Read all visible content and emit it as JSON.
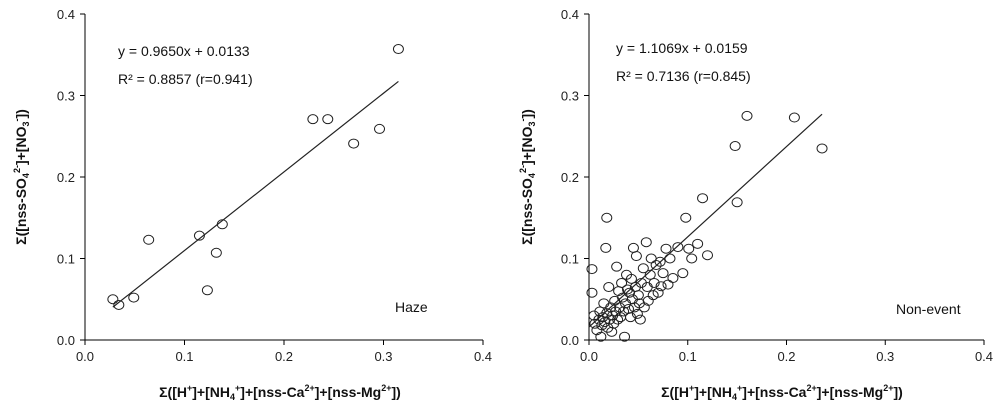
{
  "chart_data": [
    {
      "type": "scatter",
      "title": "",
      "annotation": "Haze",
      "equation": "y = 0.9650x + 0.0133",
      "r2_text": "R² = 0.8857 (r=0.941)",
      "fit": {
        "slope": 0.965,
        "intercept": 0.0133,
        "x_range": [
          0.028,
          0.315
        ]
      },
      "xlim": [
        0,
        0.4
      ],
      "ylim": [
        0,
        0.4
      ],
      "xticks": [
        "0.0",
        "0.1",
        "0.2",
        "0.3",
        "0.4"
      ],
      "yticks": [
        "0.0",
        "0.1",
        "0.2",
        "0.3",
        "0.4"
      ],
      "xlabel": {
        "pre": "Σ([H",
        "s1": "+",
        "m1": "]+[NH",
        "s2": "4",
        "s3": "+",
        "m2": "]+[nss-Ca",
        "s4": "2+",
        "m3": "]+[nss-Mg",
        "s5": "2+",
        "post": "])"
      },
      "ylabel": {
        "pre": "Σ([nss-SO",
        "s1": "4",
        "s2": "2-",
        "m1": "]+[NO",
        "s3": "3",
        "s4": "-",
        "post": "])"
      },
      "points": [
        {
          "x": 0.028,
          "y": 0.05
        },
        {
          "x": 0.034,
          "y": 0.043
        },
        {
          "x": 0.049,
          "y": 0.052
        },
        {
          "x": 0.064,
          "y": 0.123
        },
        {
          "x": 0.115,
          "y": 0.128
        },
        {
          "x": 0.123,
          "y": 0.061
        },
        {
          "x": 0.132,
          "y": 0.107
        },
        {
          "x": 0.138,
          "y": 0.142
        },
        {
          "x": 0.229,
          "y": 0.271
        },
        {
          "x": 0.244,
          "y": 0.271
        },
        {
          "x": 0.27,
          "y": 0.241
        },
        {
          "x": 0.296,
          "y": 0.259
        },
        {
          "x": 0.315,
          "y": 0.357
        }
      ]
    },
    {
      "type": "scatter",
      "title": "",
      "annotation": "Non-event",
      "equation": "y = 1.1069x + 0.0159",
      "r2_text": "R² = 0.7136 (r=0.845)",
      "fit": {
        "slope": 1.1069,
        "intercept": 0.0159,
        "x_range": [
          0.0,
          0.236
        ]
      },
      "xlim": [
        0,
        0.4
      ],
      "ylim": [
        0,
        0.4
      ],
      "xticks": [
        "0.0",
        "0.1",
        "0.2",
        "0.3",
        "0.4"
      ],
      "yticks": [
        "0.0",
        "0.1",
        "0.2",
        "0.3",
        "0.4"
      ],
      "xlabel": {
        "pre": "Σ([H",
        "s1": "+",
        "m1": "]+[NH",
        "s2": "4",
        "s3": "+",
        "m2": "]+[nss-Ca",
        "s4": "2+",
        "m3": "]+[nss-Mg",
        "s5": "2+",
        "post": "])"
      },
      "ylabel": {
        "pre": "Σ([nss-SO",
        "s1": "4",
        "s2": "2-",
        "m1": "]+[NO",
        "s3": "3",
        "s4": "-",
        "post": "])"
      },
      "points": [
        {
          "x": 0.003,
          "y": 0.087
        },
        {
          "x": 0.003,
          "y": 0.058
        },
        {
          "x": 0.005,
          "y": 0.03
        },
        {
          "x": 0.006,
          "y": 0.02
        },
        {
          "x": 0.008,
          "y": 0.012
        },
        {
          "x": 0.01,
          "y": 0.025
        },
        {
          "x": 0.011,
          "y": 0.035
        },
        {
          "x": 0.012,
          "y": 0.004
        },
        {
          "x": 0.013,
          "y": 0.018
        },
        {
          "x": 0.014,
          "y": 0.028
        },
        {
          "x": 0.015,
          "y": 0.045
        },
        {
          "x": 0.016,
          "y": 0.022
        },
        {
          "x": 0.017,
          "y": 0.113
        },
        {
          "x": 0.018,
          "y": 0.15
        },
        {
          "x": 0.018,
          "y": 0.033
        },
        {
          "x": 0.019,
          "y": 0.015
        },
        {
          "x": 0.02,
          "y": 0.065
        },
        {
          "x": 0.021,
          "y": 0.025
        },
        {
          "x": 0.022,
          "y": 0.04
        },
        {
          "x": 0.023,
          "y": 0.01
        },
        {
          "x": 0.024,
          "y": 0.03
        },
        {
          "x": 0.025,
          "y": 0.02
        },
        {
          "x": 0.026,
          "y": 0.048
        },
        {
          "x": 0.027,
          "y": 0.035
        },
        {
          "x": 0.028,
          "y": 0.09
        },
        {
          "x": 0.029,
          "y": 0.025
        },
        {
          "x": 0.03,
          "y": 0.06
        },
        {
          "x": 0.031,
          "y": 0.04
        },
        {
          "x": 0.032,
          "y": 0.028
        },
        {
          "x": 0.033,
          "y": 0.07
        },
        {
          "x": 0.034,
          "y": 0.052
        },
        {
          "x": 0.035,
          "y": 0.035
        },
        {
          "x": 0.036,
          "y": 0.004
        },
        {
          "x": 0.037,
          "y": 0.045
        },
        {
          "x": 0.038,
          "y": 0.08
        },
        {
          "x": 0.039,
          "y": 0.062
        },
        {
          "x": 0.04,
          "y": 0.038
        },
        {
          "x": 0.041,
          "y": 0.058
        },
        {
          "x": 0.042,
          "y": 0.028
        },
        {
          "x": 0.043,
          "y": 0.075
        },
        {
          "x": 0.044,
          "y": 0.05
        },
        {
          "x": 0.045,
          "y": 0.113
        },
        {
          "x": 0.046,
          "y": 0.04
        },
        {
          "x": 0.047,
          "y": 0.065
        },
        {
          "x": 0.048,
          "y": 0.103
        },
        {
          "x": 0.049,
          "y": 0.032
        },
        {
          "x": 0.05,
          "y": 0.055
        },
        {
          "x": 0.051,
          "y": 0.045
        },
        {
          "x": 0.052,
          "y": 0.025
        },
        {
          "x": 0.053,
          "y": 0.07
        },
        {
          "x": 0.055,
          "y": 0.088
        },
        {
          "x": 0.056,
          "y": 0.04
        },
        {
          "x": 0.058,
          "y": 0.12
        },
        {
          "x": 0.059,
          "y": 0.065
        },
        {
          "x": 0.06,
          "y": 0.048
        },
        {
          "x": 0.062,
          "y": 0.08
        },
        {
          "x": 0.063,
          "y": 0.1
        },
        {
          "x": 0.065,
          "y": 0.055
        },
        {
          "x": 0.066,
          "y": 0.07
        },
        {
          "x": 0.068,
          "y": 0.092
        },
        {
          "x": 0.07,
          "y": 0.058
        },
        {
          "x": 0.072,
          "y": 0.096
        },
        {
          "x": 0.073,
          "y": 0.066
        },
        {
          "x": 0.075,
          "y": 0.082
        },
        {
          "x": 0.078,
          "y": 0.112
        },
        {
          "x": 0.08,
          "y": 0.068
        },
        {
          "x": 0.082,
          "y": 0.1
        },
        {
          "x": 0.085,
          "y": 0.076
        },
        {
          "x": 0.09,
          "y": 0.114
        },
        {
          "x": 0.095,
          "y": 0.082
        },
        {
          "x": 0.098,
          "y": 0.15
        },
        {
          "x": 0.101,
          "y": 0.112
        },
        {
          "x": 0.104,
          "y": 0.1
        },
        {
          "x": 0.11,
          "y": 0.118
        },
        {
          "x": 0.115,
          "y": 0.174
        },
        {
          "x": 0.12,
          "y": 0.104
        },
        {
          "x": 0.148,
          "y": 0.238
        },
        {
          "x": 0.15,
          "y": 0.169
        },
        {
          "x": 0.16,
          "y": 0.275
        },
        {
          "x": 0.208,
          "y": 0.273
        },
        {
          "x": 0.236,
          "y": 0.235
        }
      ]
    }
  ]
}
